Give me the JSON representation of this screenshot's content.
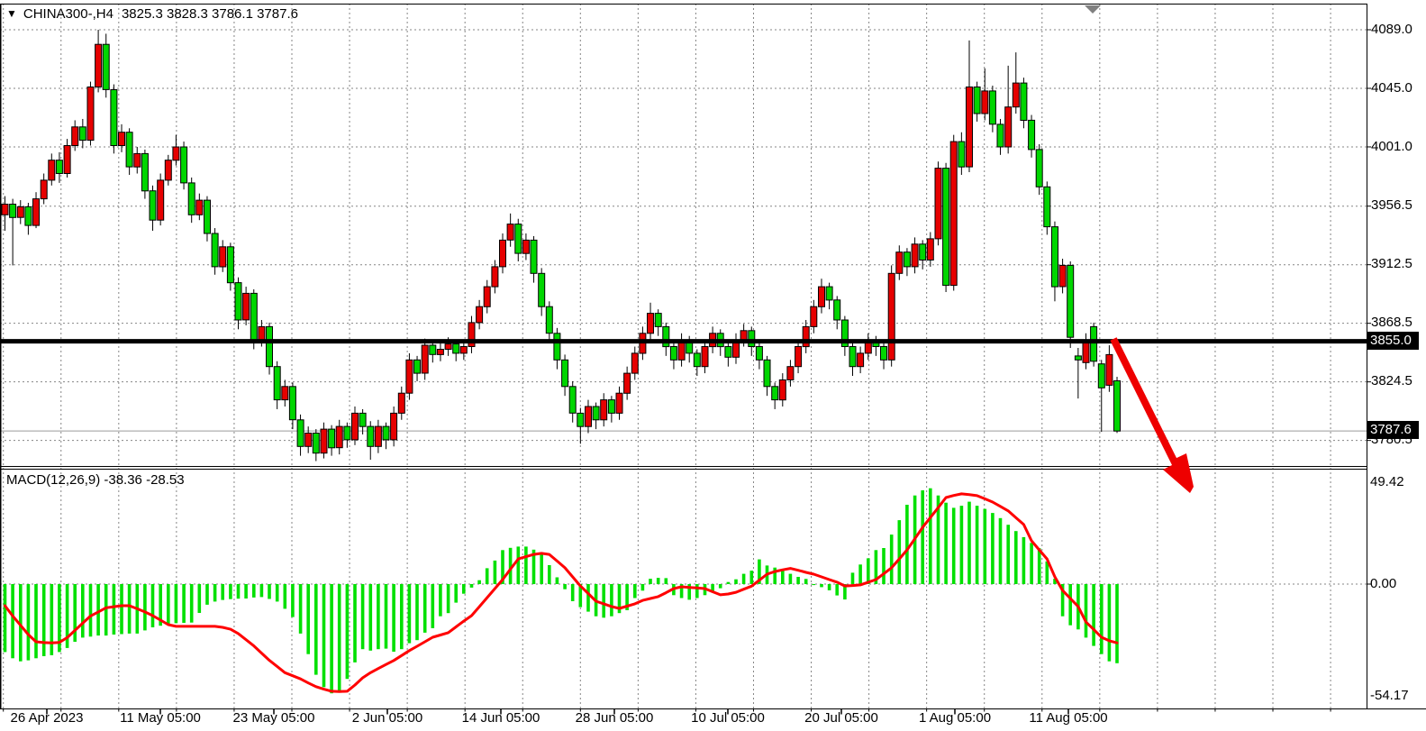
{
  "window": {
    "title_icon": "▼",
    "symbol": "CHINA300-,H4",
    "ohlc_text": "3825.3 3828.3 3786.1 3787.6"
  },
  "price_axis": {
    "labels": [
      "4089.0",
      "4045.0",
      "4001.0",
      "3956.5",
      "3912.5",
      "3868.5",
      "3824.5",
      "3780.5"
    ],
    "badges": {
      "trendline": "3855.0",
      "last_price": "3787.6"
    }
  },
  "macd_panel": {
    "label": "MACD(12,26,9) -38.36 -28.53",
    "axis_labels": [
      "49.42",
      "0.00",
      "-54.17"
    ]
  },
  "time_axis": {
    "labels": [
      "26 Apr 2023",
      "11 May 05:00",
      "23 May 05:00",
      "2 Jun 05:00",
      "14 Jun 05:00",
      "28 Jun 05:00",
      "10 Jul 05:00",
      "20 Jul 05:00",
      "1 Aug 05:00",
      "11 Aug 05:00"
    ]
  },
  "colors": {
    "bull": "#e60000",
    "bear": "#00d600",
    "hist": "#00e000",
    "signal": "#ff0000",
    "grid": "#858585",
    "frame": "#000000",
    "trendline": "#000000",
    "last_price_line": "#9a9a9a",
    "arrow": "#ee0000",
    "shift_marker": "#808080",
    "badge_bg": "#000000",
    "badge_fg": "#ffffff"
  },
  "annotations": {
    "trendline_price": 3855.0,
    "last_price": 3787.6,
    "arrow_meaning": "down-breakout arrow"
  },
  "chart_data": {
    "type": "candlestick",
    "title": "CHINA300- H4 with MACD(12,26,9)",
    "note": "bull candles are red, bear candles are green (CN convention); values estimated from axis 4089.0–3780.5 and MACD axis 49.42 / 0.00 / -54.17",
    "price_gridlines": [
      4089.0,
      4045.0,
      4001.0,
      3956.5,
      3912.5,
      3868.5,
      3824.5,
      3780.5
    ],
    "macd_gridlines": [
      0.0
    ],
    "candles_ohlc": [
      [
        3950,
        3964,
        3938,
        3958
      ],
      [
        3958,
        3962,
        3912,
        3948
      ],
      [
        3948,
        3961,
        3943,
        3956
      ],
      [
        3956,
        3959,
        3935,
        3942
      ],
      [
        3942,
        3967,
        3940,
        3962
      ],
      [
        3962,
        3981,
        3958,
        3976
      ],
      [
        3976,
        3996,
        3972,
        3991
      ],
      [
        3991,
        3997,
        3974,
        3981
      ],
      [
        3981,
        4007,
        3978,
        4002
      ],
      [
        4002,
        4021,
        3998,
        4016
      ],
      [
        4016,
        4022,
        4000,
        4006
      ],
      [
        4006,
        4050,
        4002,
        4046
      ],
      [
        4046,
        4089,
        4042,
        4078
      ],
      [
        4078,
        4086,
        4038,
        4044
      ],
      [
        4044,
        4048,
        3996,
        4002
      ],
      [
        4002,
        4018,
        3997,
        4012
      ],
      [
        4012,
        4015,
        3980,
        3986
      ],
      [
        3986,
        4001,
        3981,
        3996
      ],
      [
        3996,
        3999,
        3962,
        3968
      ],
      [
        3968,
        3972,
        3938,
        3946
      ],
      [
        3946,
        3981,
        3942,
        3976
      ],
      [
        3976,
        3995,
        3972,
        3991
      ],
      [
        3991,
        4010,
        3987,
        4001
      ],
      [
        4001,
        4005,
        3969,
        3974
      ],
      [
        3974,
        3978,
        3944,
        3950
      ],
      [
        3950,
        3966,
        3946,
        3961
      ],
      [
        3961,
        3964,
        3930,
        3936
      ],
      [
        3936,
        3940,
        3905,
        3911
      ],
      [
        3911,
        3931,
        3907,
        3926
      ],
      [
        3926,
        3929,
        3893,
        3899
      ],
      [
        3899,
        3903,
        3864,
        3871
      ],
      [
        3871,
        3896,
        3867,
        3891
      ],
      [
        3891,
        3894,
        3849,
        3856
      ],
      [
        3856,
        3871,
        3851,
        3866
      ],
      [
        3866,
        3869,
        3830,
        3836
      ],
      [
        3836,
        3840,
        3804,
        3811
      ],
      [
        3811,
        3826,
        3806,
        3821
      ],
      [
        3821,
        3824,
        3789,
        3796
      ],
      [
        3796,
        3800,
        3769,
        3776
      ],
      [
        3776,
        3791,
        3771,
        3786
      ],
      [
        3786,
        3789,
        3765,
        3771
      ],
      [
        3771,
        3794,
        3767,
        3789
      ],
      [
        3789,
        3792,
        3769,
        3775
      ],
      [
        3775,
        3796,
        3770,
        3791
      ],
      [
        3791,
        3794,
        3775,
        3781
      ],
      [
        3781,
        3806,
        3777,
        3801
      ],
      [
        3801,
        3804,
        3785,
        3791
      ],
      [
        3791,
        3795,
        3766,
        3776
      ],
      [
        3776,
        3796,
        3771,
        3791
      ],
      [
        3791,
        3794,
        3774,
        3781
      ],
      [
        3781,
        3806,
        3776,
        3801
      ],
      [
        3801,
        3821,
        3796,
        3816
      ],
      [
        3816,
        3846,
        3811,
        3841
      ],
      [
        3841,
        3844,
        3825,
        3831
      ],
      [
        3831,
        3857,
        3826,
        3852
      ],
      [
        3852,
        3856,
        3839,
        3845
      ],
      [
        3845,
        3854,
        3840,
        3849
      ],
      [
        3849,
        3858,
        3844,
        3853
      ],
      [
        3853,
        3856,
        3840,
        3846
      ],
      [
        3846,
        3856,
        3841,
        3851
      ],
      [
        3851,
        3874,
        3846,
        3869
      ],
      [
        3869,
        3886,
        3864,
        3881
      ],
      [
        3881,
        3901,
        3876,
        3896
      ],
      [
        3896,
        3916,
        3891,
        3911
      ],
      [
        3911,
        3936,
        3906,
        3931
      ],
      [
        3931,
        3951,
        3926,
        3943
      ],
      [
        3943,
        3947,
        3915,
        3921
      ],
      [
        3921,
        3936,
        3916,
        3931
      ],
      [
        3931,
        3934,
        3899,
        3906
      ],
      [
        3906,
        3910,
        3874,
        3881
      ],
      [
        3881,
        3885,
        3854,
        3861
      ],
      [
        3861,
        3865,
        3834,
        3841
      ],
      [
        3841,
        3845,
        3814,
        3821
      ],
      [
        3821,
        3825,
        3794,
        3801
      ],
      [
        3801,
        3805,
        3778,
        3791
      ],
      [
        3791,
        3811,
        3786,
        3806
      ],
      [
        3806,
        3809,
        3789,
        3796
      ],
      [
        3796,
        3816,
        3791,
        3811
      ],
      [
        3811,
        3814,
        3794,
        3801
      ],
      [
        3801,
        3821,
        3796,
        3816
      ],
      [
        3816,
        3836,
        3811,
        3831
      ],
      [
        3831,
        3851,
        3826,
        3846
      ],
      [
        3846,
        3866,
        3841,
        3861
      ],
      [
        3861,
        3884,
        3856,
        3876
      ],
      [
        3876,
        3879,
        3859,
        3866
      ],
      [
        3866,
        3869,
        3844,
        3851
      ],
      [
        3851,
        3855,
        3834,
        3841
      ],
      [
        3841,
        3861,
        3836,
        3856
      ],
      [
        3856,
        3859,
        3839,
        3846
      ],
      [
        3846,
        3849,
        3829,
        3836
      ],
      [
        3836,
        3856,
        3831,
        3851
      ],
      [
        3851,
        3866,
        3846,
        3861
      ],
      [
        3861,
        3864,
        3844,
        3851
      ],
      [
        3851,
        3854,
        3836,
        3843
      ],
      [
        3843,
        3861,
        3838,
        3856
      ],
      [
        3856,
        3868,
        3851,
        3863
      ],
      [
        3863,
        3866,
        3844,
        3851
      ],
      [
        3851,
        3854,
        3834,
        3841
      ],
      [
        3841,
        3844,
        3814,
        3821
      ],
      [
        3821,
        3824,
        3804,
        3811
      ],
      [
        3811,
        3831,
        3806,
        3826
      ],
      [
        3826,
        3841,
        3821,
        3836
      ],
      [
        3836,
        3856,
        3831,
        3851
      ],
      [
        3851,
        3871,
        3846,
        3866
      ],
      [
        3866,
        3886,
        3861,
        3881
      ],
      [
        3881,
        3902,
        3876,
        3896
      ],
      [
        3896,
        3899,
        3879,
        3886
      ],
      [
        3886,
        3889,
        3864,
        3871
      ],
      [
        3871,
        3874,
        3844,
        3851
      ],
      [
        3851,
        3854,
        3829,
        3836
      ],
      [
        3836,
        3851,
        3831,
        3846
      ],
      [
        3846,
        3861,
        3841,
        3856
      ],
      [
        3856,
        3859,
        3844,
        3851
      ],
      [
        3851,
        3854,
        3834,
        3841
      ],
      [
        3841,
        3912,
        3836,
        3906
      ],
      [
        3906,
        3927,
        3901,
        3922
      ],
      [
        3922,
        3925,
        3904,
        3911
      ],
      [
        3911,
        3933,
        3906,
        3928
      ],
      [
        3928,
        3931,
        3909,
        3916
      ],
      [
        3916,
        3937,
        3911,
        3932
      ],
      [
        3932,
        3990,
        3927,
        3985
      ],
      [
        3985,
        3989,
        3892,
        3897
      ],
      [
        3897,
        4010,
        3893,
        4005
      ],
      [
        4005,
        4012,
        3980,
        3986
      ],
      [
        3986,
        4081,
        3982,
        4046
      ],
      [
        4046,
        4050,
        4020,
        4026
      ],
      [
        4026,
        4060,
        4021,
        4043
      ],
      [
        4043,
        4047,
        4012,
        4018
      ],
      [
        4018,
        4022,
        3995,
        4001
      ],
      [
        4001,
        4062,
        3996,
        4031
      ],
      [
        4031,
        4072,
        4026,
        4049
      ],
      [
        4049,
        4053,
        4015,
        4021
      ],
      [
        4021,
        4025,
        3993,
        3999
      ],
      [
        3999,
        4003,
        3965,
        3971
      ],
      [
        3971,
        3975,
        3935,
        3941
      ],
      [
        3941,
        3945,
        3885,
        3896
      ],
      [
        3896,
        3917,
        3891,
        3912
      ],
      [
        3912,
        3915,
        3850,
        3858
      ],
      [
        3844,
        3850,
        3812,
        3841
      ],
      [
        3839,
        3861,
        3834,
        3854
      ],
      [
        3866,
        3869,
        3836,
        3840
      ],
      [
        3838,
        3841,
        3787,
        3820
      ],
      [
        3822,
        3852,
        3817,
        3845
      ],
      [
        3825.3,
        3828.3,
        3786.1,
        3787.6
      ]
    ],
    "macd_hist": [
      -33,
      -36,
      -37.5,
      -37,
      -36,
      -35,
      -34.5,
      -33,
      -31,
      -28,
      -26,
      -25.5,
      -25,
      -25,
      -24.5,
      -24.3,
      -24,
      -24,
      -22.5,
      -21,
      -20.2,
      -20,
      -19,
      -18.8,
      -18.7,
      -14,
      -10,
      -8.5,
      -7.7,
      -7.3,
      -7.1,
      -7,
      -6.5,
      -6.3,
      -7.2,
      -8.5,
      -12,
      -16,
      -24,
      -34,
      -44,
      -50,
      -53,
      -52,
      -46,
      -38,
      -31.6,
      -32.3,
      -31.6,
      -31.3,
      -32.8,
      -31.6,
      -28.7,
      -27.2,
      -23.6,
      -21.4,
      -15.6,
      -14.1,
      -9,
      -4.7,
      -1.7,
      1.9,
      7.7,
      11.4,
      16.5,
      17.6,
      18.2,
      18.2,
      16.7,
      14.3,
      9.2,
      3.3,
      -2.5,
      -8.3,
      -11.2,
      -13.4,
      -15.6,
      -16.3,
      -15.6,
      -14.1,
      -12.7,
      -6.8,
      -3.2,
      2.6,
      3,
      2.9,
      -5.4,
      -6.8,
      -7.6,
      -6.8,
      -5.4,
      -3.9,
      -2,
      1,
      2.3,
      5,
      6.5,
      12,
      9,
      8,
      7,
      5,
      3.5,
      2.5,
      -0.5,
      -1.5,
      -3,
      -5.5,
      -7.5,
      5.5,
      9.5,
      12.5,
      16.5,
      17.5,
      24,
      31,
      38.5,
      43,
      45.5,
      46.5,
      43,
      39.5,
      37,
      38,
      40,
      38,
      36.5,
      34.5,
      32,
      28.8,
      25.7,
      22.8,
      20,
      17.4,
      11,
      2.6,
      -15.6,
      -20,
      -22,
      -26,
      -30,
      -34,
      -37.5,
      -38.4
    ],
    "macd_signal": [
      -10.5,
      -15.5,
      -20,
      -24.5,
      -28,
      -28.4,
      -28.5,
      -28.3,
      -26,
      -22.5,
      -19,
      -15.5,
      -13.5,
      -11.5,
      -11,
      -10.5,
      -10.5,
      -12,
      -13.5,
      -15.3,
      -17.5,
      -19.7,
      -20.5,
      -20.5,
      -20.5,
      -20.5,
      -20.5,
      -20.5,
      -21,
      -21.9,
      -24,
      -27,
      -30,
      -33.5,
      -37,
      -40,
      -43,
      -44.5,
      -46,
      -48,
      -49.8,
      -51,
      -52,
      -52.2,
      -52,
      -49,
      -45.5,
      -43,
      -41,
      -39,
      -37.1,
      -34.7,
      -32.3,
      -30.2,
      -28,
      -25.8,
      -24.7,
      -23.6,
      -20.8,
      -18,
      -15.3,
      -11,
      -6.6,
      -2.2,
      2.2,
      7.2,
      12.2,
      13.3,
      14.4,
      14.9,
      14.4,
      11.2,
      7.9,
      3.5,
      -0.9,
      -4.6,
      -8.3,
      -9.6,
      -10.9,
      -11.8,
      -10.7,
      -9.6,
      -7.9,
      -7,
      -6.1,
      -4.2,
      -2.2,
      -1.3,
      -1.6,
      -1.9,
      -2.2,
      -3.7,
      -5.2,
      -4.8,
      -4,
      -2.5,
      -1,
      1.9,
      4.8,
      6.1,
      6.9,
      7.6,
      6.7,
      5.7,
      4.8,
      3.5,
      2.2,
      0.9,
      -0.9,
      -0.7,
      -0.4,
      0.9,
      2.2,
      5,
      7.9,
      12.2,
      16.6,
      22,
      27.5,
      32.3,
      37.1,
      42,
      43,
      43.8,
      43.4,
      42.9,
      41.4,
      39.8,
      37.7,
      35.5,
      32.2,
      28.9,
      21,
      16.6,
      12.2,
      3.5,
      -3.1,
      -7,
      -10.9,
      -18.4,
      -22,
      -25.8,
      -27.5,
      -28.5
    ]
  }
}
